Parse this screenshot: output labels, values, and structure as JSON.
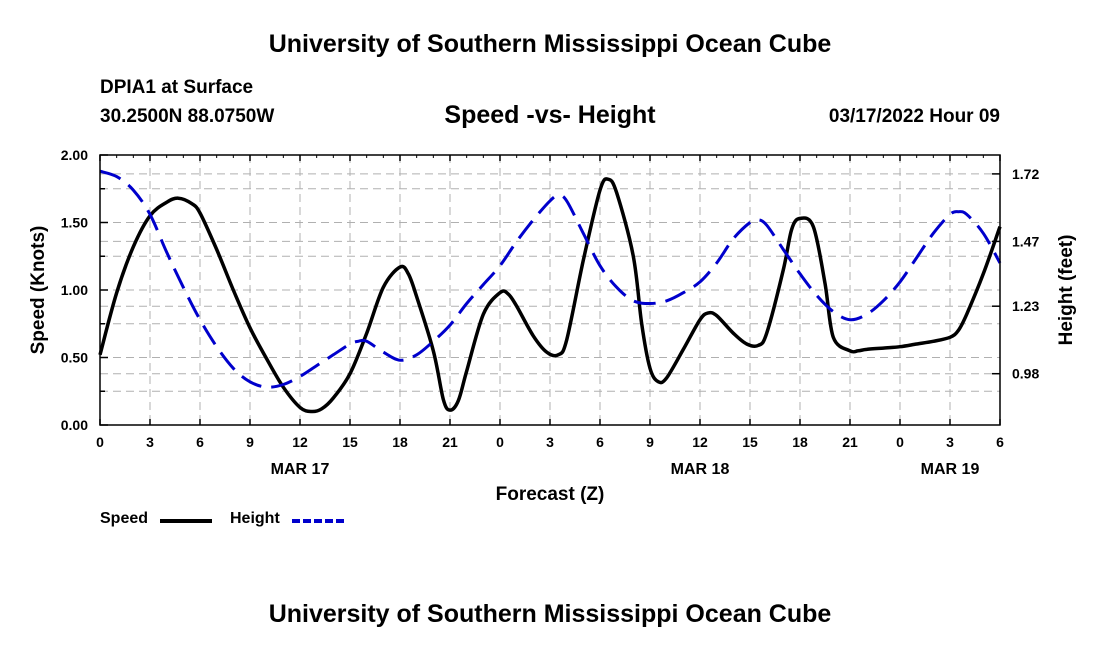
{
  "header": {
    "title": "University of Southern Mississippi Ocean Cube",
    "station": "DPIA1 at Surface",
    "coords": "30.2500N  88.0750W",
    "subtitle": "Speed -vs- Height",
    "datetime": "03/17/2022 Hour 09"
  },
  "footer": {
    "title": "University of Southern Mississippi Ocean Cube"
  },
  "colors": {
    "speed": "#000000",
    "height": "#0000cc",
    "grid": "#b0b0b0"
  },
  "chart_data": {
    "type": "line",
    "xlabel": "Forecast (Z)",
    "ylabel": "Speed (Knots)",
    "y2label": "Height (feet)",
    "xlim": [
      0,
      54
    ],
    "ylim": [
      0,
      2.0
    ],
    "y2lim": [
      0.79,
      1.79
    ],
    "x_ticks": [
      0,
      3,
      6,
      9,
      12,
      15,
      18,
      21,
      24,
      27,
      30,
      33,
      36,
      39,
      42,
      45,
      48,
      51,
      54
    ],
    "x_tick_labels": [
      "0",
      "3",
      "6",
      "9",
      "12",
      "15",
      "18",
      "21",
      "0",
      "3",
      "6",
      "9",
      "12",
      "15",
      "18",
      "21",
      "0",
      "3",
      "6"
    ],
    "day_labels": [
      {
        "x": 12,
        "label": "MAR 17"
      },
      {
        "x": 36,
        "label": "MAR 18"
      },
      {
        "x": 51,
        "label": "MAR 19"
      }
    ],
    "y_ticks": [
      0.0,
      0.5,
      1.0,
      1.5,
      2.0
    ],
    "y_tick_labels": [
      "0.00",
      "0.50",
      "1.00",
      "1.50",
      "2.00"
    ],
    "y2_ticks": [
      0.98,
      1.23,
      1.47,
      1.72
    ],
    "y2_tick_labels": [
      "0.98",
      "1.23",
      "1.47",
      "1.72"
    ],
    "grid": true,
    "legend_position": "bottom-left",
    "series": [
      {
        "name": "Speed",
        "axis": "left",
        "style": "solid",
        "x": [
          0,
          1,
          2,
          3,
          4,
          4.7,
          5.5,
          6,
          7,
          8,
          9,
          10,
          11,
          12,
          12.7,
          13.3,
          14,
          15,
          16,
          17,
          18,
          18.5,
          19,
          20,
          20.6,
          21,
          21.5,
          22,
          23,
          24,
          24.5,
          25,
          26,
          26.8,
          27.5,
          28,
          29,
          30,
          30.5,
          31,
          32,
          32.5,
          33,
          33.5,
          34,
          35,
          36,
          36.5,
          37,
          38,
          38.8,
          39.5,
          40,
          41,
          41.5,
          42,
          42.8,
          43.5,
          44,
          45,
          45.5,
          46,
          47,
          48,
          49,
          50,
          51,
          51.5,
          52,
          53,
          54
        ],
        "values": [
          0.52,
          0.98,
          1.32,
          1.55,
          1.65,
          1.68,
          1.64,
          1.57,
          1.3,
          1.0,
          0.72,
          0.49,
          0.28,
          0.13,
          0.1,
          0.12,
          0.2,
          0.38,
          0.68,
          1.02,
          1.17,
          1.12,
          0.95,
          0.55,
          0.19,
          0.11,
          0.18,
          0.4,
          0.82,
          0.98,
          0.97,
          0.88,
          0.66,
          0.54,
          0.52,
          0.63,
          1.22,
          1.74,
          1.82,
          1.72,
          1.25,
          0.75,
          0.42,
          0.32,
          0.35,
          0.56,
          0.78,
          0.83,
          0.81,
          0.68,
          0.6,
          0.59,
          0.68,
          1.15,
          1.45,
          1.53,
          1.47,
          1.05,
          0.65,
          0.55,
          0.55,
          0.56,
          0.57,
          0.58,
          0.6,
          0.62,
          0.65,
          0.7,
          0.82,
          1.12,
          1.47
        ]
      },
      {
        "name": "Height",
        "axis": "right",
        "style": "dashed",
        "x": [
          0,
          1,
          2,
          3,
          4,
          5,
          6,
          7,
          8,
          9,
          10,
          11,
          12,
          13,
          14,
          15,
          15.5,
          16,
          17,
          18,
          19,
          20,
          21,
          22,
          23,
          24,
          25,
          26,
          27,
          27.5,
          28,
          29,
          30,
          31,
          32,
          33,
          34,
          35,
          36,
          37,
          38,
          39,
          39.5,
          40,
          41,
          42,
          43,
          44,
          45,
          46,
          47,
          48,
          49,
          50,
          51,
          51.5,
          52,
          53,
          54
        ],
        "values": [
          1.73,
          1.71,
          1.66,
          1.57,
          1.43,
          1.3,
          1.18,
          1.08,
          1.0,
          0.95,
          0.93,
          0.94,
          0.97,
          1.01,
          1.05,
          1.09,
          1.1,
          1.1,
          1.06,
          1.03,
          1.05,
          1.1,
          1.16,
          1.24,
          1.31,
          1.38,
          1.47,
          1.55,
          1.62,
          1.64,
          1.62,
          1.5,
          1.38,
          1.3,
          1.25,
          1.24,
          1.25,
          1.28,
          1.32,
          1.39,
          1.48,
          1.54,
          1.55,
          1.53,
          1.44,
          1.35,
          1.27,
          1.21,
          1.18,
          1.2,
          1.25,
          1.32,
          1.41,
          1.5,
          1.57,
          1.58,
          1.57,
          1.5,
          1.39
        ]
      }
    ]
  },
  "legend": [
    {
      "label": "Speed"
    },
    {
      "label": "Height"
    }
  ]
}
